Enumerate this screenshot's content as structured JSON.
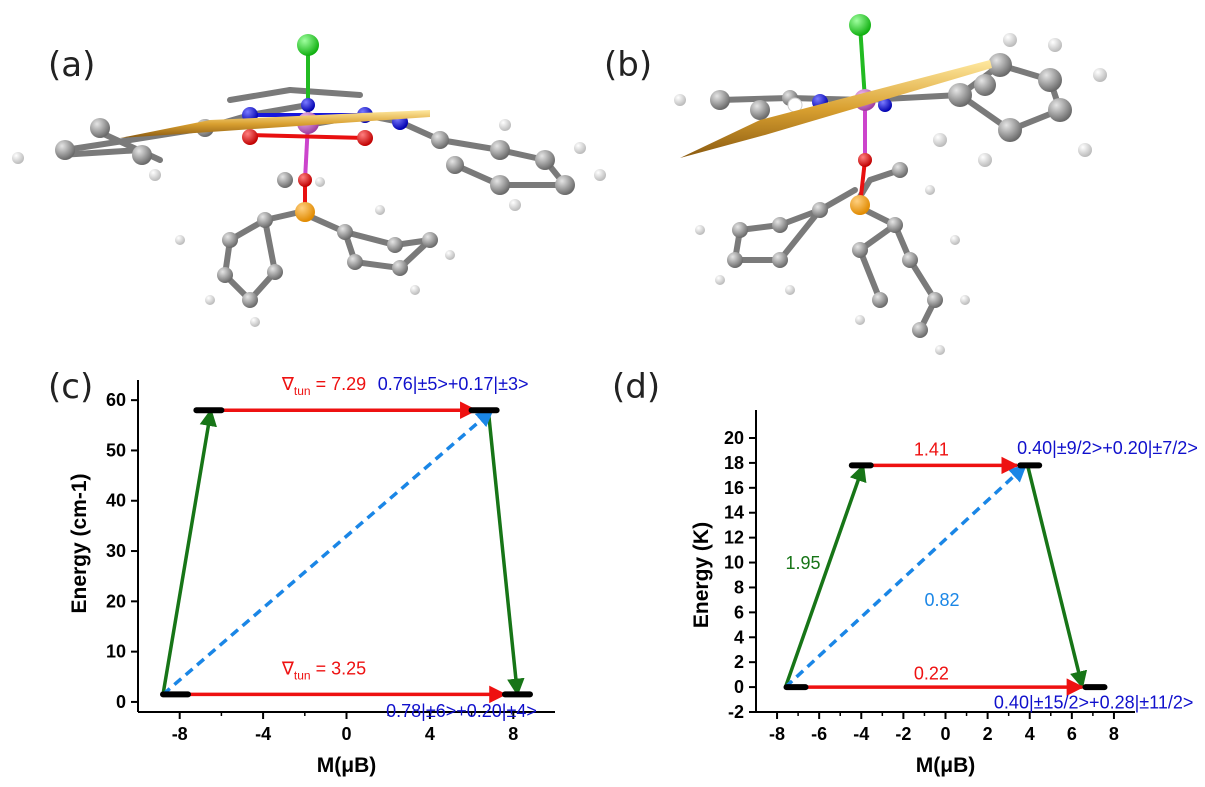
{
  "panels": {
    "a": "(a)",
    "b": "(b)",
    "c": "(c)",
    "d": "(d)"
  },
  "colors": {
    "red": "#ee1111",
    "green": "#177517",
    "blue_dash": "#1a86e6",
    "blue_text": "#1010cc",
    "level": "#000000",
    "atom_C": "#8c8c8c",
    "atom_H": "#e6e6e6",
    "atom_N": "#1616dd",
    "atom_O": "#e81010",
    "atom_Cl": "#22dd22",
    "atom_P": "#f5a015",
    "atom_metal": "#cc66cc",
    "axis_arrow": "#d9a030"
  },
  "chart_data": [
    {
      "type": "energy-level diagram",
      "panel": "(c)",
      "xlabel": "M(μB)",
      "ylabel": "Energy (cm-1)",
      "xlim": [
        -10,
        10
      ],
      "ylim": [
        -2,
        65
      ],
      "xticks": [
        "-8",
        "-4",
        "0",
        "4",
        "8"
      ],
      "xtick_values": [
        -8,
        -4,
        0,
        4,
        8
      ],
      "yticks": [
        "0",
        "10",
        "20",
        "30",
        "40",
        "50",
        "60"
      ],
      "ytick_values": [
        0,
        10,
        20,
        30,
        40,
        50,
        60
      ],
      "levels": [
        {
          "m": -8.2,
          "halfwidth": 0.6,
          "e": 1.5
        },
        {
          "m": 8.2,
          "halfwidth": 0.6,
          "e": 1.5
        },
        {
          "m": -6.6,
          "halfwidth": 0.6,
          "e": 58
        },
        {
          "m": 6.6,
          "halfwidth": 0.6,
          "e": 58
        }
      ],
      "arrows": [
        {
          "kind": "green",
          "from": [
            -8.8,
            1.5
          ],
          "to": [
            -6.5,
            58
          ]
        },
        {
          "kind": "green",
          "from": [
            6.8,
            58
          ],
          "to": [
            8.2,
            1.5
          ]
        },
        {
          "kind": "blue",
          "from": [
            -8.8,
            1.5
          ],
          "to": [
            7.0,
            58
          ]
        },
        {
          "kind": "red",
          "from": [
            -6.0,
            58
          ],
          "to": [
            6.2,
            58
          ]
        },
        {
          "kind": "red",
          "from": [
            -7.8,
            1.5
          ],
          "to": [
            7.6,
            1.5
          ]
        }
      ],
      "annotations": [
        {
          "symbol": "∇",
          "sub": "tun",
          "text": " = 7.29",
          "color": "red",
          "x": -3.1,
          "y": 62
        },
        {
          "symbol": "∇",
          "sub": "tun",
          "text": " = 3.25",
          "color": "red",
          "x": -3.1,
          "y": 5.5
        },
        {
          "text": "0.76|±5>+0.17|±3>",
          "color": "blue_text",
          "x": 1.5,
          "y": 62
        },
        {
          "text": "0.78|±6>+0.20|±4>",
          "color": "blue_text",
          "x": 1.9,
          "y": -3
        }
      ]
    },
    {
      "type": "energy-level diagram",
      "panel": "(d)",
      "xlabel": "M(μB)",
      "ylabel": "Energy (K)",
      "xlim": [
        -9,
        9
      ],
      "ylim": [
        -2,
        20
      ],
      "xticks": [
        "-8",
        "-6",
        "-4",
        "-2",
        "0",
        "2",
        "4",
        "6",
        "8"
      ],
      "xtick_values": [
        -8,
        -6,
        -4,
        -2,
        0,
        2,
        4,
        6,
        8
      ],
      "yticks": [
        "-2",
        "0",
        "2",
        "4",
        "6",
        "8",
        "10",
        "12",
        "14",
        "16",
        "18",
        "20"
      ],
      "ytick_values": [
        -2,
        0,
        2,
        4,
        6,
        8,
        10,
        12,
        14,
        16,
        18,
        20
      ],
      "levels": [
        {
          "m": -7.1,
          "halfwidth": 0.45,
          "e": 0
        },
        {
          "m": 7.1,
          "halfwidth": 0.45,
          "e": 0
        },
        {
          "m": -4.0,
          "halfwidth": 0.45,
          "e": 17.8
        },
        {
          "m": 4.0,
          "halfwidth": 0.45,
          "e": 17.8
        }
      ],
      "arrows": [
        {
          "kind": "green",
          "from": [
            -7.6,
            0
          ],
          "to": [
            -3.9,
            17.8
          ]
        },
        {
          "kind": "green",
          "from": [
            3.9,
            17.8
          ],
          "to": [
            6.5,
            0
          ]
        },
        {
          "kind": "blue",
          "from": [
            -7.6,
            0
          ],
          "to": [
            3.8,
            17.8
          ]
        },
        {
          "kind": "red",
          "from": [
            -3.6,
            17.8
          ],
          "to": [
            3.4,
            17.8
          ]
        },
        {
          "kind": "red",
          "from": [
            -6.7,
            0
          ],
          "to": [
            6.5,
            0
          ]
        }
      ],
      "annotations": [
        {
          "text": "1.41",
          "color": "red",
          "x": -1.5,
          "y": 18.6
        },
        {
          "text": "0.22",
          "color": "red",
          "x": -1.5,
          "y": 0.6
        },
        {
          "text": "1.95",
          "color": "green",
          "x": -7.6,
          "y": 9.5
        },
        {
          "text": "0.82",
          "color": "blue_dash",
          "x": -1.0,
          "y": 6.5
        },
        {
          "text": "0.40|±9/2>+0.20|±7/2>",
          "color": "blue_text",
          "x": 3.4,
          "y": 18.7
        },
        {
          "text": "0.40|±15/2>+0.28|±11/2>",
          "color": "blue_text",
          "x": 2.3,
          "y": -1.7
        }
      ]
    }
  ]
}
